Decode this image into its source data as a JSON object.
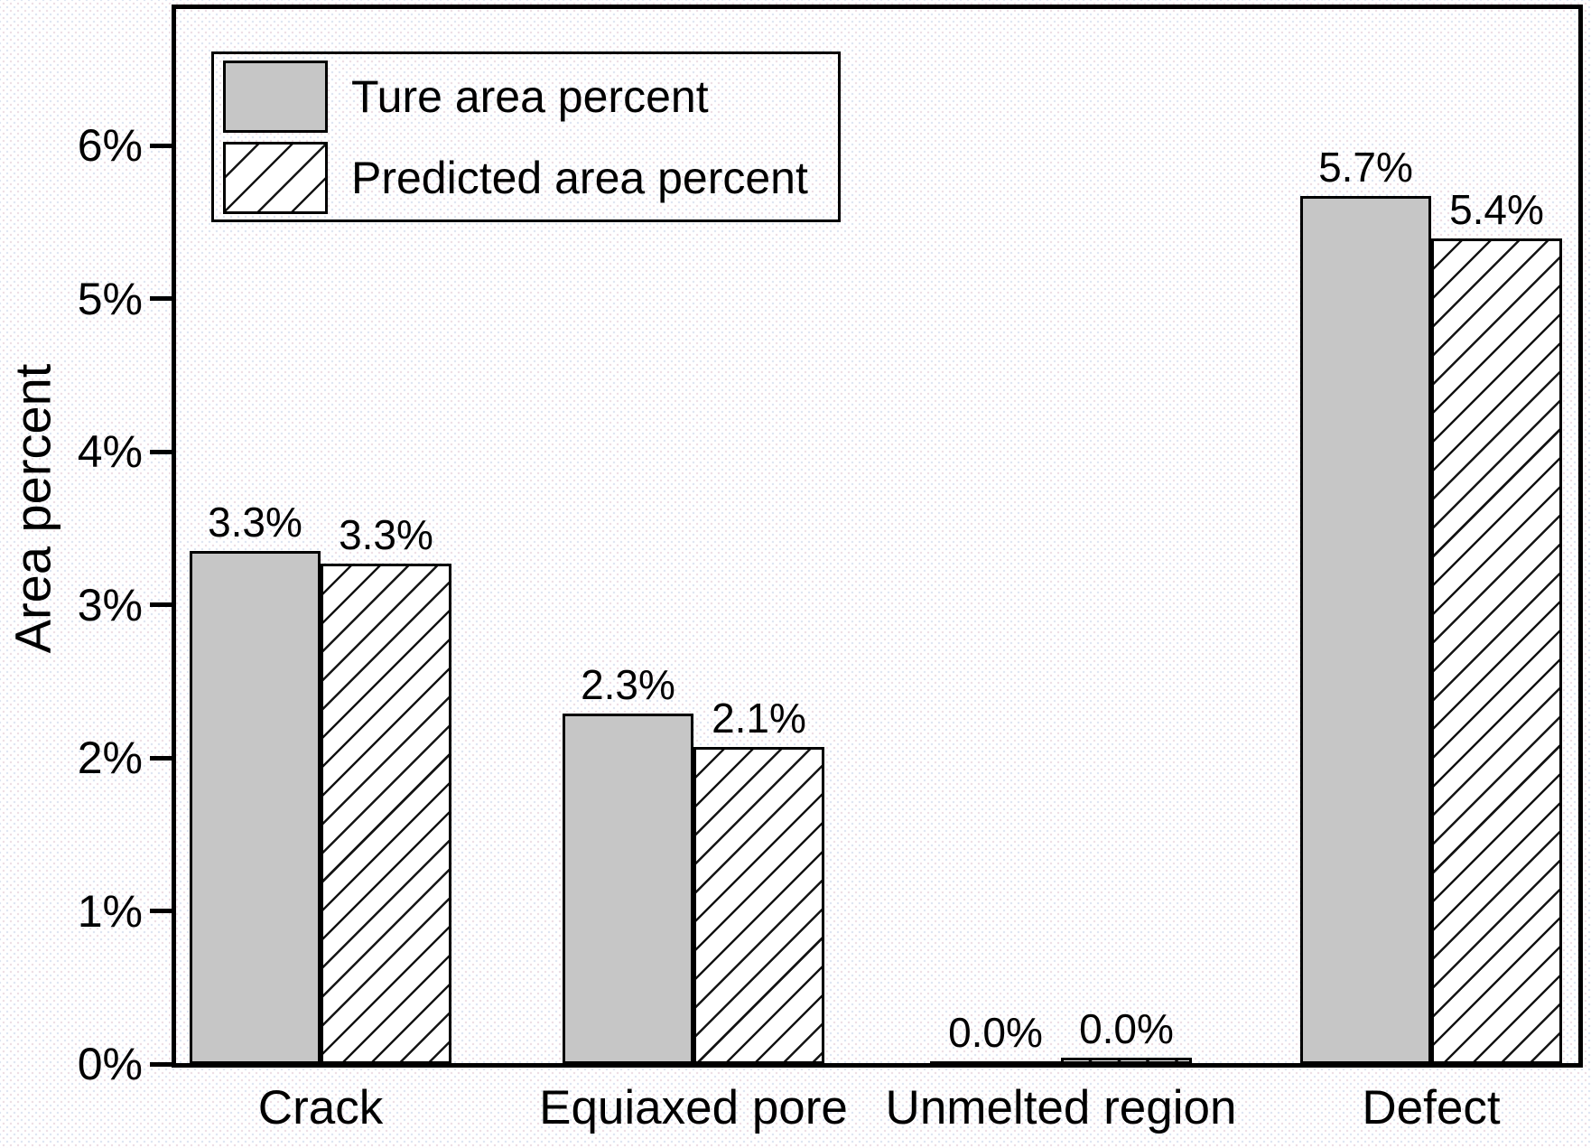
{
  "chart_data": {
    "type": "bar",
    "ylabel": "Area percent",
    "categories": [
      "Crack",
      "Equiaxed pore",
      "Unmelted region",
      "Defect"
    ],
    "series": [
      {
        "name": "Ture area percent",
        "style": "solid",
        "fill": "#c6c6c6",
        "hatch": "none",
        "values": [
          3.35,
          2.29,
          0.02,
          5.67
        ],
        "value_labels": [
          "3.3%",
          "2.3%",
          "0.0%",
          "5.7%"
        ]
      },
      {
        "name": "Predicted area percent",
        "style": "hatched",
        "fill": "#ffffff",
        "hatch": "/",
        "values": [
          3.27,
          2.07,
          0.04,
          5.39
        ],
        "value_labels": [
          "3.3%",
          "2.1%",
          "0.0%",
          "5.4%"
        ]
      }
    ],
    "y_axis": {
      "unit": "%",
      "range": [
        0,
        6.92
      ],
      "ticks": [
        {
          "value": 0,
          "label": "0%"
        },
        {
          "value": 1,
          "label": "1%"
        },
        {
          "value": 2,
          "label": "2%"
        },
        {
          "value": 3,
          "label": "3%"
        },
        {
          "value": 4,
          "label": "4%"
        },
        {
          "value": 5,
          "label": "5%"
        },
        {
          "value": 6,
          "label": "6%"
        }
      ]
    },
    "legend": {
      "position": "upper-left"
    },
    "grid": false,
    "colors": {
      "bar_fill_gray": "#c6c6c6",
      "bar_border": "#000000",
      "frame": "#000000",
      "text": "#000000"
    }
  }
}
